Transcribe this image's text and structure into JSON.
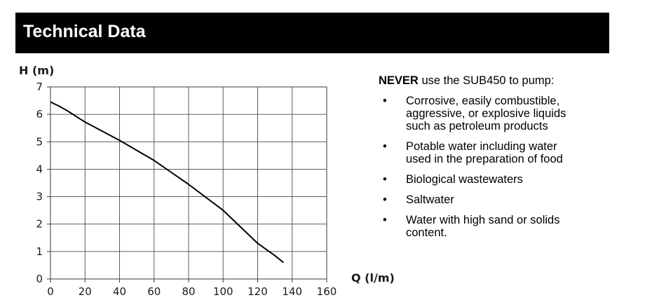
{
  "header": {
    "title": "Technical Data"
  },
  "chart_data": {
    "type": "line",
    "title": "",
    "ylabel": "H (m)",
    "xlabel": "Q (l/m)",
    "xlim": [
      0,
      160
    ],
    "ylim": [
      0,
      7
    ],
    "xticks": [
      0,
      20,
      40,
      60,
      80,
      100,
      120,
      140,
      160
    ],
    "yticks": [
      0,
      1,
      2,
      3,
      4,
      5,
      6,
      7
    ],
    "grid": true,
    "series": [
      {
        "x": [
          0,
          5,
          10,
          15,
          20,
          40,
          60,
          80,
          100,
          110,
          120,
          130,
          135
        ],
        "y": [
          6.45,
          6.3,
          6.12,
          5.92,
          5.72,
          5.05,
          4.32,
          3.45,
          2.5,
          1.9,
          1.3,
          0.85,
          0.6
        ]
      }
    ]
  },
  "notes": {
    "heading_strong": "NEVER",
    "heading_rest": " use the SUB450 to pump:",
    "bullet": "•",
    "items": [
      [
        "Corrosive, easily combustible,",
        "aggressive, or explosive liquids",
        "such as petroleum products"
      ],
      [
        "Potable water including water",
        "used in the preparation of food"
      ],
      [
        "Biological wastewaters"
      ],
      [
        "Saltwater"
      ],
      [
        "Water with high sand or solids",
        "content."
      ]
    ]
  }
}
